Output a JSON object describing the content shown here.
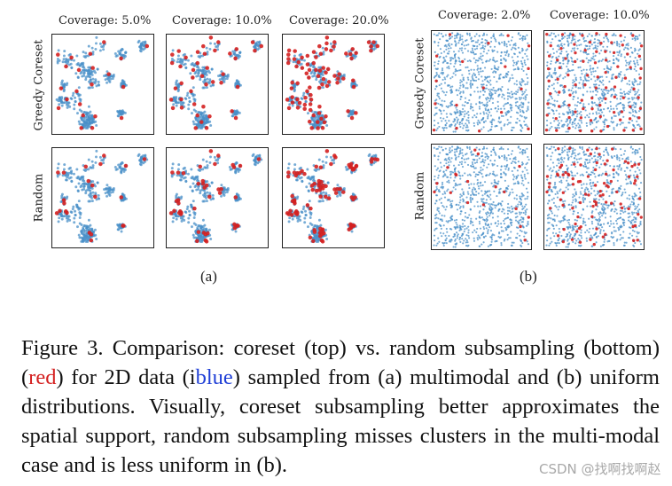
{
  "figure": {
    "part_a": {
      "columns": [
        "Coverage: 5.0%",
        "Coverage: 10.0%",
        "Coverage: 20.0%"
      ],
      "rows": [
        "Greedy Coreset",
        "Random"
      ],
      "label": "(a)",
      "distribution": "multimodal"
    },
    "part_b": {
      "columns": [
        "Coverage: 2.0%",
        "Coverage: 10.0%"
      ],
      "rows": [
        "Greedy Coreset",
        "Random"
      ],
      "label": "(b)",
      "distribution": "uniform"
    },
    "colors": {
      "data": "#4a90c8",
      "selected": "#d42020",
      "frame": "#222222"
    }
  },
  "caption": {
    "prefix": "Figure 3.  Comparison:  coreset (top) vs.  random subsampling (bottom) (",
    "red_word": "red",
    "middle": ") for 2D data (i",
    "blue_word": "blue",
    "suffix": ") sampled from (a) multimodal and (b) uniform distributions. Visually, coreset subsampling better approximates the spatial support, random subsampling misses clusters in the multi-modal case and is less uniform in (b)."
  },
  "watermark": "CSDN @找啊找啊赵"
}
